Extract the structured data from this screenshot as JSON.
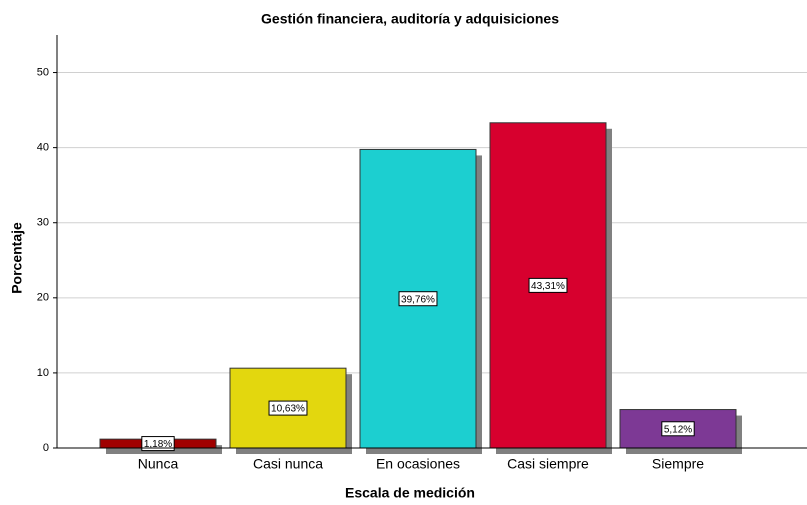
{
  "chart_data": {
    "type": "bar",
    "title": "Gestión financiera, auditoría y adquisiciones",
    "x_label": "Escala de medición",
    "y_label": "Porcentaje",
    "categories": [
      "Nunca",
      "Casi nunca",
      "En ocasiones",
      "Casi siempre",
      "Siempre"
    ],
    "values": [
      1.18,
      10.63,
      39.76,
      43.31,
      5.12
    ],
    "value_labels": [
      "1,18%",
      "10,63%",
      "39,76%",
      "43,31%",
      "5,12%"
    ],
    "colors": [
      "#a00000",
      "#e3d70e",
      "#1ccfd0",
      "#d7002e",
      "#7d3995"
    ],
    "ylim": [
      0,
      55
    ],
    "yticks": [
      0,
      10,
      20,
      30,
      40,
      50
    ],
    "grid": true
  }
}
